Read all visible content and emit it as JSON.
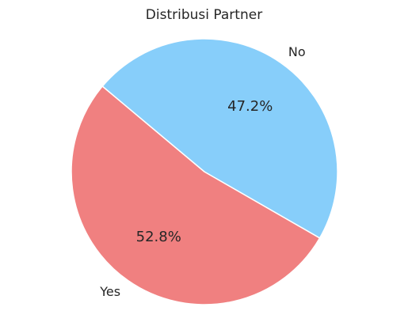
{
  "chart_data": {
    "type": "pie",
    "title": "Distribusi Partner",
    "categories": [
      "Yes",
      "No"
    ],
    "values": [
      52.8,
      47.2
    ],
    "percent_labels": [
      "52.8%",
      "47.2%"
    ],
    "colors": [
      "#f08080",
      "#87cefa"
    ],
    "start_angle_deg": 140,
    "direction": "counterclockwise",
    "legend": "none",
    "grid": false
  }
}
